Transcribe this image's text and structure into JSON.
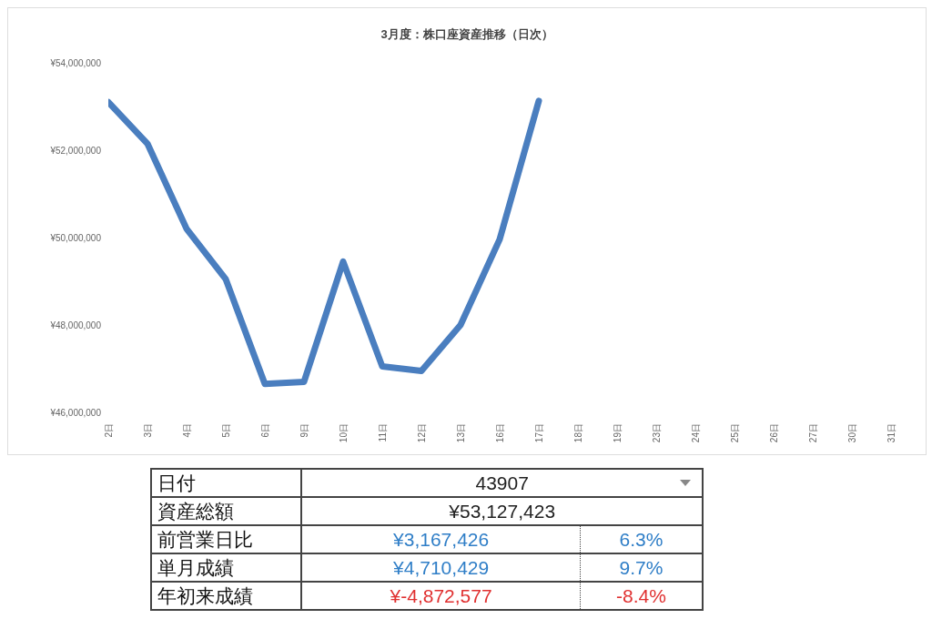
{
  "chart_data": {
    "type": "line",
    "title": "3月度：株口座資産推移（日次）",
    "categories": [
      "2日",
      "3日",
      "4日",
      "5日",
      "6日",
      "9日",
      "10日",
      "11日",
      "12日",
      "13日",
      "16日",
      "17日",
      "18日",
      "19日",
      "23日",
      "24日",
      "25日",
      "26日",
      "27日",
      "30日",
      "31日"
    ],
    "series": [
      {
        "color": "#4a7ebf",
        "values": [
          53100000,
          52150000,
          50200000,
          49050000,
          46650000,
          46700000,
          49450000,
          47050000,
          46950000,
          48000000,
          49960000,
          53130000,
          null,
          null,
          null,
          null,
          null,
          null,
          null,
          null,
          null
        ]
      }
    ],
    "ylim": [
      46000000,
      54000000
    ],
    "yticks": [
      {
        "value": 46000000,
        "label": "¥46,000,000"
      },
      {
        "value": 48000000,
        "label": "¥48,000,000"
      },
      {
        "value": 50000000,
        "label": "¥50,000,000"
      },
      {
        "value": 52000000,
        "label": "¥52,000,000"
      },
      {
        "value": 54000000,
        "label": "¥54,000,000"
      }
    ],
    "grid": false,
    "legend": false,
    "marker": "none",
    "line_style": "solid",
    "annotations": [
      "日付",
      "43907",
      "資産総額",
      "¥53,127,423",
      "前営業日比",
      "¥3,167,426",
      "6.3%",
      "単月成績",
      "¥4,710,429",
      "9.7%",
      "年初来成績",
      "¥-4,872,577",
      "-8.4%"
    ]
  }
}
